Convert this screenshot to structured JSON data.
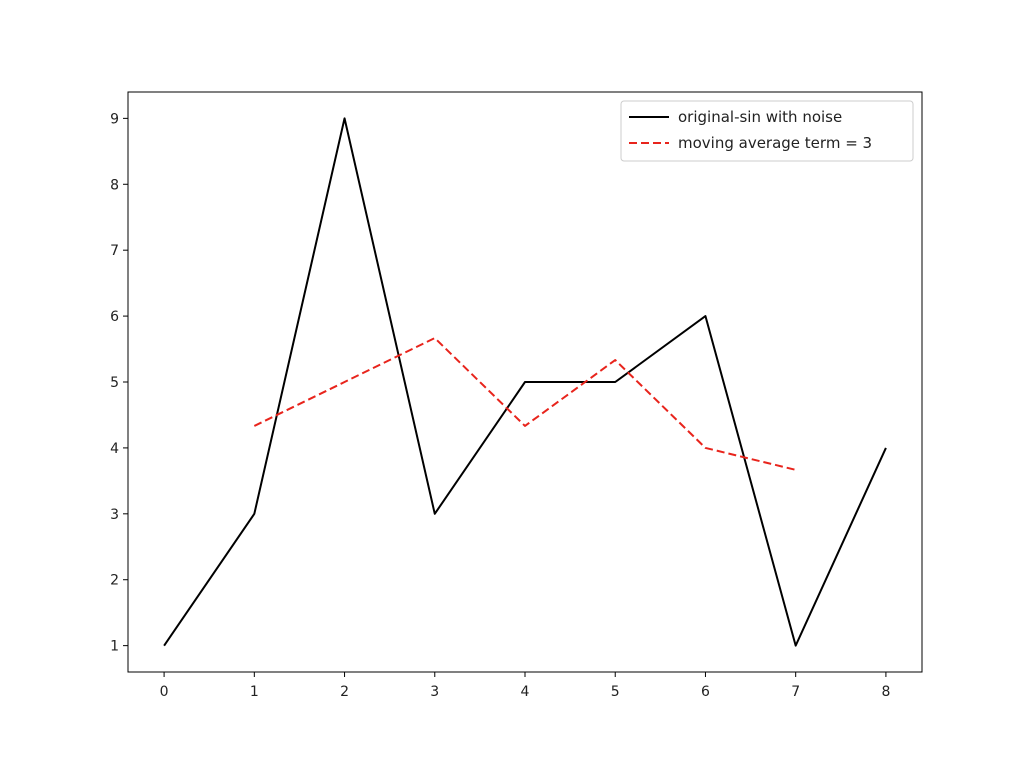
{
  "chart_data": {
    "type": "line",
    "title": "",
    "xlabel": "",
    "ylabel": "",
    "xlim": [
      -0.4,
      8.4
    ],
    "ylim": [
      0.6,
      9.4
    ],
    "xticks": [
      "0",
      "1",
      "2",
      "3",
      "4",
      "5",
      "6",
      "7",
      "8"
    ],
    "yticks": [
      "1",
      "2",
      "3",
      "4",
      "5",
      "6",
      "7",
      "8",
      "9"
    ],
    "grid": false,
    "legend_position": "top-right",
    "series": [
      {
        "name": "original-sin with noise",
        "color": "#000000",
        "style": "solid",
        "x": [
          0,
          1,
          2,
          3,
          4,
          5,
          6,
          7,
          8
        ],
        "y": [
          1,
          3,
          9,
          3,
          5,
          5,
          6,
          1,
          4
        ]
      },
      {
        "name": "moving average term = 3",
        "color": "#e8241c",
        "style": "dashed",
        "x": [
          1,
          2,
          3,
          4,
          5,
          6,
          7
        ],
        "y": [
          4.333,
          5.0,
          5.667,
          4.333,
          5.333,
          4.0,
          3.667
        ]
      }
    ]
  }
}
